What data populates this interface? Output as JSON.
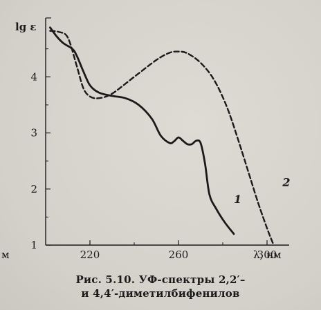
{
  "chart_data": {
    "type": "line",
    "ylabel": "lg ε",
    "xlabel": "λ, нм",
    "left_unit_fragment": "м",
    "xlim": [
      200,
      310
    ],
    "ylim": [
      1,
      5.05
    ],
    "x_ticks": [
      "220",
      "260",
      "300"
    ],
    "y_ticks": [
      "1",
      "2",
      "3",
      "4"
    ],
    "x_tick_values": [
      220,
      260,
      300
    ],
    "y_tick_values": [
      1,
      2,
      3,
      4
    ],
    "grid": false,
    "series": [
      {
        "name": "1",
        "style": "solid",
        "color": "#1a1a1a",
        "x": [
          202,
          205,
          208,
          212,
          214,
          217,
          220,
          224,
          230,
          236,
          242,
          248,
          252,
          256,
          258,
          260,
          262,
          264,
          266,
          268,
          270,
          272,
          274,
          277,
          281,
          285
        ],
        "y": [
          4.88,
          4.72,
          4.6,
          4.5,
          4.38,
          4.1,
          3.85,
          3.72,
          3.66,
          3.62,
          3.5,
          3.25,
          2.95,
          2.82,
          2.85,
          2.92,
          2.86,
          2.8,
          2.8,
          2.86,
          2.82,
          2.45,
          1.9,
          1.65,
          1.4,
          1.2
        ]
      },
      {
        "name": "2",
        "style": "dashed",
        "color": "#1a1a1a",
        "x": [
          202,
          206,
          210,
          214,
          217,
          220,
          224,
          230,
          240,
          250,
          256,
          260,
          264,
          270,
          276,
          282,
          288,
          292,
          296,
          300,
          303
        ],
        "y": [
          4.82,
          4.8,
          4.7,
          4.2,
          3.8,
          3.65,
          3.62,
          3.7,
          4.0,
          4.3,
          4.43,
          4.45,
          4.42,
          4.25,
          3.95,
          3.45,
          2.75,
          2.25,
          1.75,
          1.3,
          1.0
        ]
      }
    ],
    "annotations": [
      {
        "text": "1",
        "x": 285,
        "y": 1.75
      },
      {
        "text": "2",
        "x": 307,
        "y": 2.05
      }
    ]
  },
  "caption": {
    "line1": "Рис. 5.10. УФ-спектры 2,2′–",
    "line2": "и 4,4′-диметилбифенилов"
  }
}
